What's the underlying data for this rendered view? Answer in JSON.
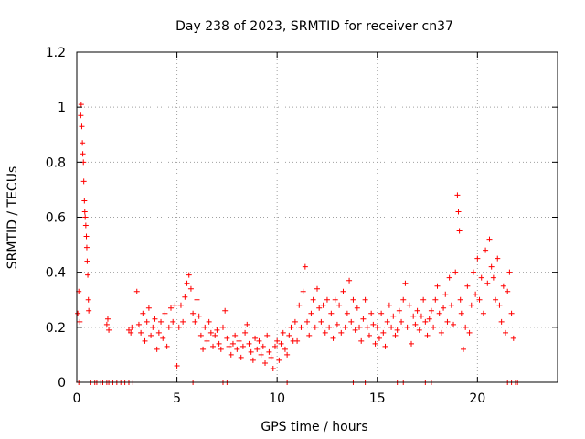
{
  "chart_data": {
    "type": "scatter",
    "title": "Day 238 of 2023, SRMTID for receiver cn37",
    "xlabel": "GPS time / hours",
    "ylabel": "SRMTID / TECUs",
    "xlim": [
      0,
      24
    ],
    "ylim": [
      0,
      1.2
    ],
    "xticks": [
      0,
      5,
      10,
      15,
      20
    ],
    "xtick_labels": [
      "0",
      "5",
      "10",
      "15",
      "20"
    ],
    "yticks": [
      0,
      0.2,
      0.4,
      0.6,
      0.8,
      1.0,
      1.2
    ],
    "ytick_labels": [
      "0",
      "0.2",
      "0.4",
      "0.6",
      "0.8",
      "1",
      "1.2"
    ],
    "grid": true,
    "marker": "+",
    "color": "#ff0000",
    "series": [
      {
        "name": "SRMTID",
        "x": [
          0.05,
          0.1,
          0.15,
          0.2,
          0.22,
          0.25,
          0.28,
          0.3,
          0.33,
          0.35,
          0.38,
          0.4,
          0.42,
          0.45,
          0.48,
          0.5,
          0.52,
          0.55,
          0.58,
          0.6,
          0.1,
          0.7,
          0.9,
          1.0,
          1.2,
          1.3,
          1.5,
          1.6,
          1.8,
          2.0,
          2.2,
          2.4,
          2.6,
          2.8,
          1.5,
          1.55,
          1.6,
          2.6,
          2.7,
          2.75,
          3.0,
          3.1,
          3.2,
          3.3,
          3.4,
          3.5,
          3.6,
          3.7,
          3.8,
          3.9,
          4.0,
          4.1,
          4.2,
          4.3,
          4.4,
          4.5,
          4.6,
          4.7,
          4.8,
          4.9,
          5.0,
          5.1,
          5.2,
          5.3,
          5.4,
          5.5,
          5.6,
          5.7,
          5.8,
          5.9,
          6.0,
          6.1,
          6.2,
          6.3,
          6.4,
          6.5,
          6.6,
          6.7,
          6.8,
          6.9,
          7.0,
          7.1,
          7.2,
          7.3,
          7.4,
          7.5,
          7.6,
          7.7,
          7.8,
          7.9,
          8.0,
          8.1,
          8.2,
          8.3,
          8.4,
          8.5,
          8.6,
          8.7,
          8.8,
          8.9,
          9.0,
          9.1,
          9.2,
          9.3,
          9.4,
          9.5,
          9.6,
          9.7,
          9.8,
          9.9,
          10.0,
          10.1,
          10.2,
          10.3,
          10.4,
          10.5,
          10.6,
          10.7,
          10.8,
          10.9,
          11.0,
          11.1,
          11.2,
          11.3,
          11.4,
          11.5,
          11.6,
          11.7,
          11.8,
          11.9,
          12.0,
          12.1,
          12.2,
          12.3,
          12.4,
          12.5,
          12.6,
          12.7,
          12.8,
          12.9,
          13.0,
          13.1,
          13.2,
          13.3,
          13.4,
          13.5,
          13.6,
          13.7,
          13.8,
          13.9,
          14.0,
          14.1,
          14.2,
          14.3,
          14.4,
          14.5,
          14.6,
          14.7,
          14.8,
          14.9,
          15.0,
          15.1,
          15.2,
          15.3,
          15.4,
          15.5,
          15.6,
          15.7,
          15.8,
          15.9,
          16.0,
          16.1,
          16.2,
          16.3,
          16.4,
          16.5,
          16.6,
          16.7,
          16.8,
          16.9,
          17.0,
          17.1,
          17.2,
          17.3,
          17.4,
          17.5,
          17.6,
          17.7,
          17.8,
          17.9,
          18.0,
          18.1,
          18.2,
          18.3,
          18.4,
          18.5,
          18.6,
          18.7,
          18.8,
          18.9,
          19.0,
          19.05,
          19.1,
          19.15,
          19.2,
          19.3,
          19.4,
          19.5,
          19.6,
          19.7,
          19.8,
          19.9,
          20.0,
          20.1,
          20.2,
          20.3,
          20.4,
          20.5,
          20.6,
          20.7,
          20.8,
          20.9,
          21.0,
          21.1,
          21.2,
          21.3,
          21.4,
          21.5,
          21.6,
          21.7,
          21.8,
          5.8,
          7.3,
          7.5,
          10.5,
          13.8,
          14.4,
          16.0,
          16.3,
          17.4,
          17.7,
          21.5,
          21.7,
          21.9,
          22.0
        ],
        "y": [
          0.25,
          0.33,
          0.22,
          0.97,
          1.01,
          0.93,
          0.87,
          0.83,
          0.8,
          0.73,
          0.66,
          0.62,
          0.6,
          0.57,
          0.53,
          0.49,
          0.44,
          0.39,
          0.3,
          0.26,
          0.0,
          0.0,
          0.0,
          0.0,
          0.0,
          0.0,
          0.0,
          0.0,
          0.0,
          0.0,
          0.0,
          0.0,
          0.0,
          0.0,
          0.21,
          0.23,
          0.19,
          0.19,
          0.18,
          0.2,
          0.33,
          0.21,
          0.18,
          0.25,
          0.15,
          0.22,
          0.27,
          0.17,
          0.2,
          0.23,
          0.12,
          0.18,
          0.22,
          0.16,
          0.25,
          0.13,
          0.2,
          0.27,
          0.22,
          0.28,
          0.06,
          0.2,
          0.28,
          0.22,
          0.31,
          0.36,
          0.39,
          0.34,
          0.25,
          0.22,
          0.3,
          0.24,
          0.17,
          0.12,
          0.2,
          0.15,
          0.22,
          0.18,
          0.13,
          0.17,
          0.19,
          0.14,
          0.12,
          0.2,
          0.26,
          0.16,
          0.13,
          0.1,
          0.14,
          0.17,
          0.12,
          0.15,
          0.09,
          0.13,
          0.18,
          0.21,
          0.14,
          0.11,
          0.08,
          0.16,
          0.12,
          0.15,
          0.1,
          0.13,
          0.07,
          0.17,
          0.11,
          0.09,
          0.05,
          0.13,
          0.15,
          0.08,
          0.14,
          0.18,
          0.12,
          0.1,
          0.17,
          0.2,
          0.15,
          0.22,
          0.15,
          0.28,
          0.2,
          0.33,
          0.42,
          0.22,
          0.17,
          0.25,
          0.3,
          0.2,
          0.34,
          0.27,
          0.22,
          0.28,
          0.18,
          0.3,
          0.2,
          0.25,
          0.16,
          0.3,
          0.21,
          0.28,
          0.18,
          0.33,
          0.2,
          0.25,
          0.37,
          0.22,
          0.3,
          0.19,
          0.27,
          0.2,
          0.15,
          0.23,
          0.3,
          0.2,
          0.17,
          0.25,
          0.21,
          0.14,
          0.2,
          0.16,
          0.25,
          0.18,
          0.13,
          0.22,
          0.28,
          0.2,
          0.24,
          0.17,
          0.19,
          0.26,
          0.22,
          0.3,
          0.36,
          0.2,
          0.28,
          0.14,
          0.24,
          0.21,
          0.26,
          0.19,
          0.24,
          0.3,
          0.22,
          0.17,
          0.23,
          0.26,
          0.2,
          0.3,
          0.35,
          0.25,
          0.18,
          0.27,
          0.32,
          0.22,
          0.38,
          0.28,
          0.21,
          0.4,
          0.68,
          0.62,
          0.55,
          0.3,
          0.25,
          0.12,
          0.2,
          0.35,
          0.18,
          0.28,
          0.4,
          0.32,
          0.45,
          0.3,
          0.38,
          0.25,
          0.48,
          0.36,
          0.52,
          0.42,
          0.38,
          0.3,
          0.45,
          0.28,
          0.22,
          0.35,
          0.18,
          0.33,
          0.4,
          0.25,
          0.16,
          0.0,
          0.0,
          0.0,
          0.0,
          0.0,
          0.0,
          0.0,
          0.0,
          0.0,
          0.0,
          0.0,
          0.0,
          0.0,
          0.0
        ]
      }
    ]
  }
}
